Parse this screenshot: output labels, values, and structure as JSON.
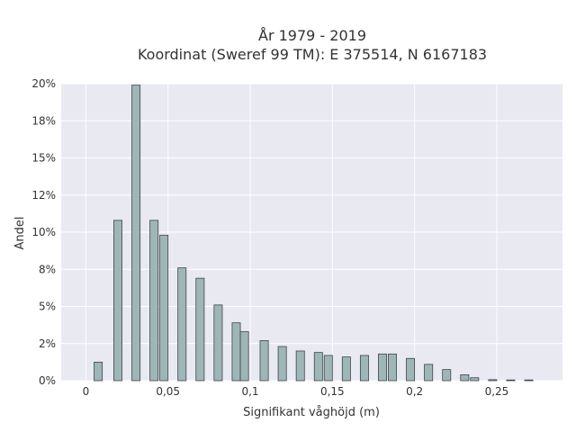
{
  "chart_data": {
    "type": "bar",
    "title": "År 1979 - 2019",
    "subtitle": "Koordinat (Sweref 99 TM): E 375514, N 6167183",
    "xlabel": "Signifikant våghöjd (m)",
    "ylabel": "Andel",
    "xlim": [
      -0.015,
      0.29
    ],
    "ylim": [
      0,
      0.2
    ],
    "x_ticks": [
      0,
      0.05,
      0.1,
      0.15,
      0.2,
      0.25
    ],
    "x_tick_labels": [
      "0",
      "0,05",
      "0,1",
      "0,15",
      "0,2",
      "0,25"
    ],
    "y_ticks": [
      0,
      0.025,
      0.05,
      0.075,
      0.1,
      0.125,
      0.15,
      0.175,
      0.2
    ],
    "y_tick_labels": [
      "0%",
      "2%",
      "5%",
      "8%",
      "10%",
      "12%",
      "15%",
      "18%",
      "20%"
    ],
    "bar_width": 0.005,
    "x": [
      0.0075,
      0.0195,
      0.0305,
      0.0415,
      0.0475,
      0.0585,
      0.0695,
      0.0805,
      0.0915,
      0.0965,
      0.1085,
      0.1195,
      0.1305,
      0.1415,
      0.1475,
      0.1585,
      0.1695,
      0.1805,
      0.1865,
      0.1975,
      0.2085,
      0.2195,
      0.2305,
      0.2365,
      0.2475,
      0.2585,
      0.2695
    ],
    "values": [
      0.0125,
      0.108,
      0.199,
      0.108,
      0.098,
      0.076,
      0.069,
      0.051,
      0.039,
      0.033,
      0.027,
      0.023,
      0.02,
      0.019,
      0.017,
      0.016,
      0.017,
      0.018,
      0.018,
      0.015,
      0.011,
      0.0075,
      0.004,
      0.002,
      0.0007,
      0.0005,
      0.0005
    ],
    "grid": true,
    "colors": {
      "plot_background": "#e9e9f1",
      "grid": "#ffffff",
      "bar_fill": "#9fb6b7",
      "bar_stroke": "#3b4646",
      "text": "#333333"
    }
  }
}
